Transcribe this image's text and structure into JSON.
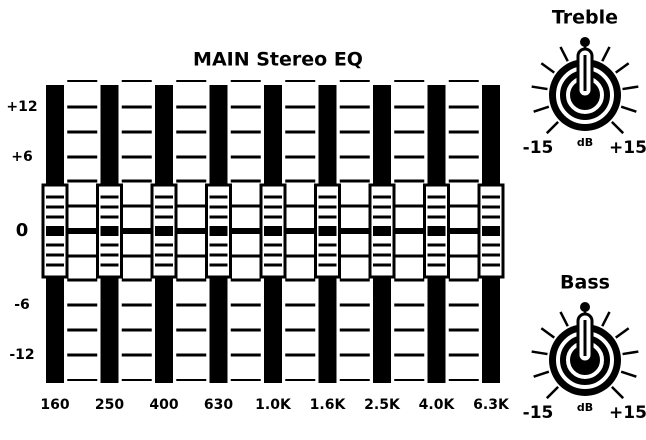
{
  "title": "MAIN Stereo EQ",
  "scale": [
    {
      "value": 12,
      "label": "+12"
    },
    {
      "value": 6,
      "label": "+6"
    },
    {
      "value": 0,
      "label": "0"
    },
    {
      "value": -6,
      "label": "-6"
    },
    {
      "value": -12,
      "label": "-12"
    }
  ],
  "bands": [
    {
      "label": "160",
      "gain": 0
    },
    {
      "label": "250",
      "gain": 0
    },
    {
      "label": "400",
      "gain": 0
    },
    {
      "label": "630",
      "gain": 0
    },
    {
      "label": "1.0K",
      "gain": 0
    },
    {
      "label": "1.6K",
      "gain": 0
    },
    {
      "label": "2.5K",
      "gain": 0
    },
    {
      "label": "4.0K",
      "gain": 0
    },
    {
      "label": "6.3K",
      "gain": 0
    }
  ],
  "knobs": [
    {
      "title": "Treble",
      "value": 0,
      "unit": "dB",
      "min": {
        "value": -15,
        "label": "-15"
      },
      "max": {
        "value": 15,
        "label": "+15"
      }
    },
    {
      "title": "Bass",
      "value": 0,
      "unit": "dB",
      "min": {
        "value": -15,
        "label": "-15"
      },
      "max": {
        "value": 15,
        "label": "+15"
      }
    }
  ]
}
